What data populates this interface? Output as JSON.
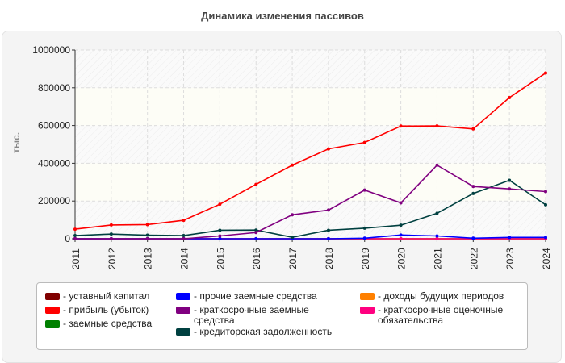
{
  "chart_data": {
    "type": "line",
    "title": "Динамика изменения пассивов",
    "ylabel": "тыс.",
    "xlabel": "",
    "ylim": [
      0,
      1000000
    ],
    "yticks": [
      0,
      200000,
      400000,
      600000,
      800000,
      1000000
    ],
    "grid": true,
    "legend_placement": "bottom",
    "categories": [
      "2011",
      "2012",
      "2013",
      "2014",
      "2015",
      "2016",
      "2017",
      "2018",
      "2019",
      "2020",
      "2021",
      "2022",
      "2023",
      "2024"
    ],
    "series": [
      {
        "name": "уставный капитал",
        "color": "#800000",
        "values": [
          0,
          0,
          0,
          0,
          0,
          0,
          0,
          0,
          0,
          0,
          0,
          0,
          0,
          0
        ]
      },
      {
        "name": "прибыль (убыток)",
        "color": "#ff0000",
        "values": [
          51000,
          73000,
          75000,
          98000,
          183000,
          288000,
          390000,
          476000,
          510000,
          597000,
          598000,
          582000,
          748000,
          878000
        ]
      },
      {
        "name": "заемные средства",
        "color": "#008000",
        "values": [
          0,
          0,
          0,
          0,
          0,
          0,
          0,
          0,
          0,
          0,
          0,
          0,
          0,
          0
        ]
      },
      {
        "name": "прочие заемные средства",
        "color": "#0000ff",
        "values": [
          0,
          0,
          0,
          0,
          0,
          0,
          0,
          0,
          3000,
          20000,
          15000,
          3000,
          7000,
          7000
        ]
      },
      {
        "name": "краткосрочные заемные средства",
        "color": "#800080",
        "values": [
          0,
          0,
          0,
          0,
          15000,
          33000,
          127000,
          152000,
          258000,
          190000,
          390000,
          277000,
          264000,
          250000
        ]
      },
      {
        "name": "кредиторская задолженность",
        "color": "#004040",
        "values": [
          17000,
          25000,
          19000,
          17000,
          45000,
          46000,
          8000,
          45000,
          56000,
          72000,
          135000,
          240000,
          310000,
          180000
        ]
      },
      {
        "name": "доходы будущих периодов",
        "color": "#ff8000",
        "values": [
          0,
          0,
          0,
          0,
          0,
          0,
          0,
          0,
          0,
          0,
          0,
          0,
          0,
          0
        ]
      },
      {
        "name": "краткосрочные оценочные обязательства",
        "color": "#ff0080",
        "values": [
          0,
          0,
          0,
          0,
          0,
          0,
          0,
          0,
          0,
          0,
          0,
          0,
          0,
          0
        ]
      }
    ]
  }
}
